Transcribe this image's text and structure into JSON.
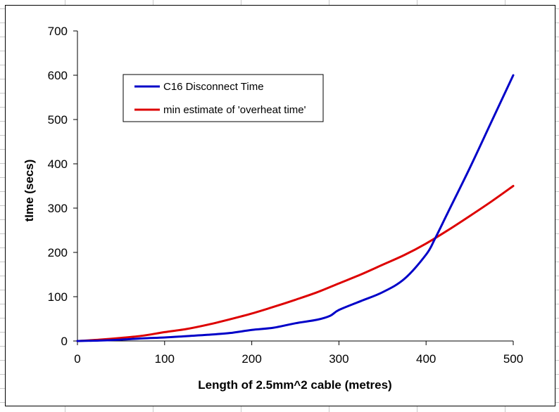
{
  "chart_data": {
    "type": "line",
    "title": "",
    "xlabel": "Length of 2.5mm^2 cable (metres)",
    "ylabel": "tIme (secs)",
    "xlim": [
      0,
      500
    ],
    "ylim": [
      0,
      700
    ],
    "xticks": [
      0,
      100,
      200,
      300,
      400,
      500
    ],
    "yticks": [
      0,
      100,
      200,
      300,
      400,
      500,
      600,
      700
    ],
    "grid": false,
    "legend_position": "top-left",
    "series": [
      {
        "name": "C16 Disconnect Time",
        "color": "#0000C8",
        "x": [
          0,
          25,
          50,
          75,
          100,
          125,
          150,
          175,
          200,
          225,
          250,
          275,
          290,
          300,
          325,
          350,
          375,
          400,
          410,
          425,
          450,
          475,
          500
        ],
        "y": [
          0,
          1,
          3,
          6,
          8,
          11,
          14,
          18,
          25,
          30,
          40,
          48,
          57,
          70,
          90,
          110,
          140,
          195,
          230,
          290,
          390,
          495,
          600
        ]
      },
      {
        "name": "min estimate of 'overheat time'",
        "color": "#DD0000",
        "x": [
          0,
          25,
          50,
          75,
          100,
          125,
          150,
          175,
          200,
          225,
          250,
          275,
          300,
          325,
          350,
          375,
          400,
          425,
          450,
          475,
          500
        ],
        "y": [
          0,
          3,
          7,
          12,
          20,
          27,
          37,
          49,
          62,
          77,
          93,
          110,
          130,
          150,
          172,
          194,
          220,
          250,
          282,
          315,
          350
        ]
      }
    ]
  }
}
